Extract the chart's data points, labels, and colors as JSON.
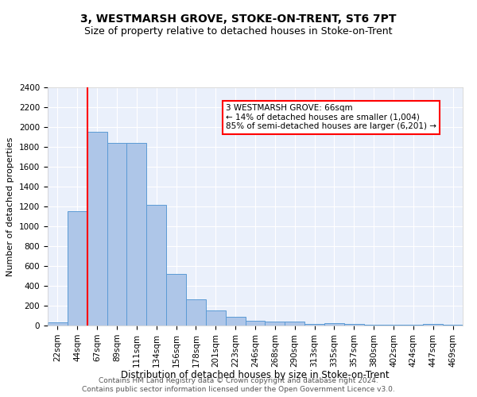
{
  "title": "3, WESTMARSH GROVE, STOKE-ON-TRENT, ST6 7PT",
  "subtitle": "Size of property relative to detached houses in Stoke-on-Trent",
  "xlabel": "Distribution of detached houses by size in Stoke-on-Trent",
  "ylabel": "Number of detached properties",
  "categories": [
    "22sqm",
    "44sqm",
    "67sqm",
    "89sqm",
    "111sqm",
    "134sqm",
    "156sqm",
    "178sqm",
    "201sqm",
    "223sqm",
    "246sqm",
    "268sqm",
    "290sqm",
    "313sqm",
    "335sqm",
    "357sqm",
    "380sqm",
    "402sqm",
    "424sqm",
    "447sqm",
    "469sqm"
  ],
  "values": [
    30,
    1150,
    1950,
    1840,
    1840,
    1215,
    520,
    265,
    155,
    85,
    50,
    40,
    37,
    20,
    25,
    15,
    10,
    8,
    5,
    20,
    5
  ],
  "bar_color": "#aec6e8",
  "bar_edge_color": "#5b9bd5",
  "vline_color": "red",
  "vline_pos": 1.5,
  "annotation_text": "3 WESTMARSH GROVE: 66sqm\n← 14% of detached houses are smaller (1,004)\n85% of semi-detached houses are larger (6,201) →",
  "annotation_box_color": "white",
  "annotation_box_edge": "red",
  "ylim": [
    0,
    2400
  ],
  "yticks": [
    0,
    200,
    400,
    600,
    800,
    1000,
    1200,
    1400,
    1600,
    1800,
    2000,
    2200,
    2400
  ],
  "background_color": "#eaf0fb",
  "footer1": "Contains HM Land Registry data © Crown copyright and database right 2024.",
  "footer2": "Contains public sector information licensed under the Open Government Licence v3.0.",
  "title_fontsize": 10,
  "subtitle_fontsize": 9,
  "xlabel_fontsize": 8.5,
  "ylabel_fontsize": 8,
  "tick_fontsize": 7.5,
  "annotation_fontsize": 7.5,
  "footer_fontsize": 6.5
}
